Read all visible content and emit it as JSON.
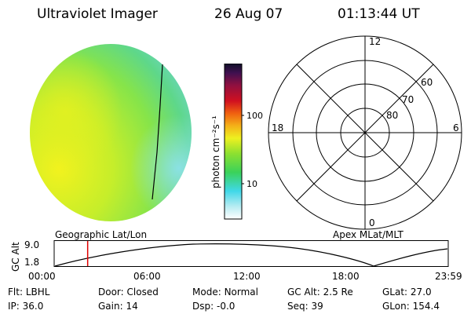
{
  "header": {
    "instrument": "Ultraviolet Imager",
    "date": "26 Aug 07",
    "time": "01:13:44 UT"
  },
  "colorbar": {
    "unit_label": "photon cm⁻²s⁻¹",
    "tick_100": "100",
    "tick_10": "10"
  },
  "polar": {
    "mlt_top": "12",
    "mlt_left": "18",
    "mlt_right": "6",
    "mlt_bottom": "0",
    "lat_60": "60",
    "lat_70": "70",
    "lat_80": "80"
  },
  "projection": {
    "left_label": "Geographic Lat/Lon",
    "right_label": "Apex MLat/MLT"
  },
  "altitude_plot": {
    "ylabel": "GC Alt",
    "y_top": "9.0",
    "y_bottom": "1.8",
    "x_ticks": [
      "00:00",
      "06:00",
      "12:00",
      "18:00",
      "23:59"
    ],
    "current_marker_fraction": 0.085
  },
  "status": {
    "filter_label": "Flt:",
    "filter_value": "LBHL",
    "ip_label": "IP:",
    "ip_value": "36.0",
    "door_label": "Door:",
    "door_value": "Closed",
    "gain_label": "Gain:",
    "gain_value": "14",
    "mode_label": "Mode:",
    "mode_value": "Normal",
    "dsp_label": "Dsp:",
    "dsp_value": "-0.0",
    "gcalt_label": "GC Alt:",
    "gcalt_value": "2.5 Re",
    "seq_label": "Seq:",
    "seq_value": "39",
    "glat_label": "GLat:",
    "glat_value": "27.0",
    "glon_label": "GLon:",
    "glon_value": "154.4"
  }
}
